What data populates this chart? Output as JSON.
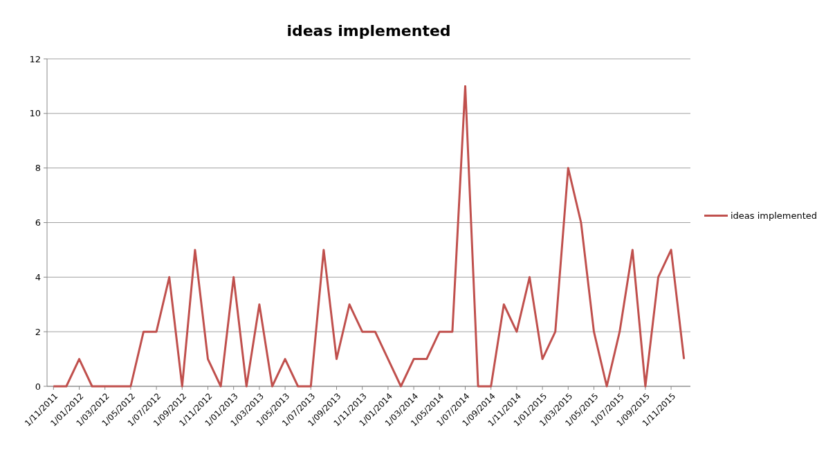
{
  "chart_data": {
    "type": "line",
    "title": "ideas implemented",
    "categories": [
      "1/11/2011",
      null,
      "1/01/2012",
      null,
      "1/03/2012",
      null,
      "1/05/2012",
      null,
      "1/07/2012",
      null,
      "1/09/2012",
      null,
      "1/11/2012",
      null,
      "1/01/2013",
      null,
      "1/03/2013",
      null,
      "1/05/2013",
      null,
      "1/07/2013",
      null,
      "1/09/2013",
      null,
      "1/11/2013",
      null,
      "1/01/2014",
      null,
      "1/03/2014",
      null,
      "1/05/2014",
      null,
      "1/07/2014",
      null,
      "1/09/2014",
      null,
      "1/11/2014",
      null,
      "1/01/2015",
      null,
      "1/03/2015",
      null,
      "1/05/2015",
      null,
      "1/07/2015",
      null,
      "1/09/2015",
      null,
      "1/11/2015",
      null
    ],
    "series": [
      {
        "name": "ideas implemented",
        "color": "#c0504d",
        "values": [
          0,
          0,
          1,
          0,
          0,
          0,
          0,
          2,
          2,
          4,
          0,
          5,
          1,
          0,
          4,
          0,
          3,
          0,
          1,
          0,
          0,
          5,
          1,
          3,
          2,
          2,
          1,
          0,
          1,
          1,
          2,
          2,
          11,
          0,
          0,
          3,
          2,
          4,
          1,
          2,
          8,
          6,
          2,
          0,
          2,
          5,
          0,
          4,
          5,
          1
        ]
      }
    ],
    "ylim": [
      0,
      12
    ],
    "yticks": [
      0,
      2,
      4,
      6,
      8,
      10,
      12
    ],
    "grid": "y",
    "legend": "right",
    "marker": "none",
    "line_style": "solid"
  }
}
